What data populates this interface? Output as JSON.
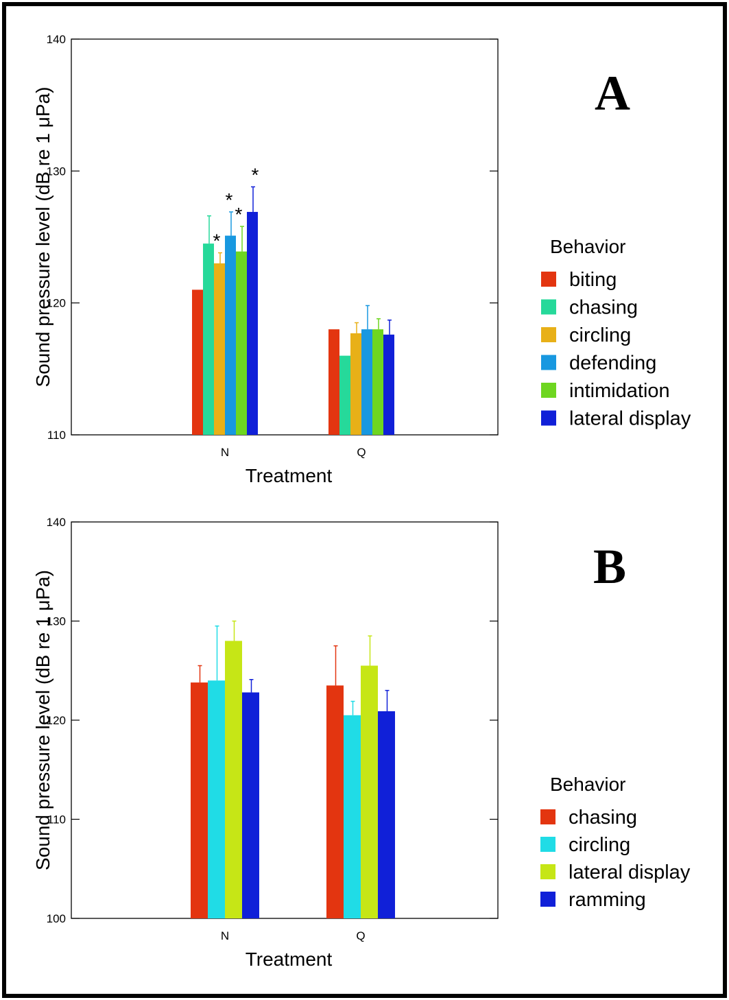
{
  "colors": {
    "biting": "#e33510",
    "chasing_a": "#26d99a",
    "circling_a": "#e8b018",
    "defending": "#1898e0",
    "intimidation": "#6ed620",
    "lateral_display": "#1020d8",
    "chasing_b": "#e33510",
    "circling_b": "#20dce6",
    "lateral_display_b": "#c6e616",
    "ramming": "#1020d8"
  },
  "chart_data": [
    {
      "type": "bar",
      "panel_label": "A",
      "xlabel": "Treatment",
      "ylabel": "Sound pressure level (dB re 1 μPa)",
      "ylim": [
        110,
        140
      ],
      "yticks": [
        "110",
        "120",
        "130",
        "140"
      ],
      "categories": [
        "N",
        "Q"
      ],
      "legend_title": "Behavior",
      "legend_position": "right",
      "series": [
        {
          "name": "biting",
          "values": [
            121.0,
            118.0
          ],
          "errors": [
            null,
            null
          ],
          "significant": [
            false,
            false
          ],
          "color_key": "biting"
        },
        {
          "name": "chasing",
          "values": [
            124.5,
            116.0
          ],
          "errors": [
            2.1,
            null
          ],
          "significant": [
            false,
            false
          ],
          "color_key": "chasing_a"
        },
        {
          "name": "circling",
          "values": [
            123.0,
            117.7
          ],
          "errors": [
            0.8,
            0.8
          ],
          "significant": [
            true,
            false
          ],
          "color_key": "circling_a"
        },
        {
          "name": "defending",
          "values": [
            125.1,
            118.0
          ],
          "errors": [
            1.8,
            1.8
          ],
          "significant": [
            true,
            false
          ],
          "color_key": "defending"
        },
        {
          "name": "intimidation",
          "values": [
            123.9,
            118.0
          ],
          "errors": [
            1.9,
            0.8
          ],
          "significant": [
            true,
            false
          ],
          "color_key": "intimidation"
        },
        {
          "name": "lateral display",
          "values": [
            126.9,
            117.6
          ],
          "errors": [
            1.9,
            1.1
          ],
          "significant": [
            true,
            false
          ],
          "color_key": "lateral_display"
        }
      ],
      "annotation_symbol": "*"
    },
    {
      "type": "bar",
      "panel_label": "B",
      "xlabel": "Treatment",
      "ylabel": "Sound pressure level (dB re 1 μPa)",
      "ylim": [
        100,
        140
      ],
      "yticks": [
        "100",
        "110",
        "120",
        "130",
        "140"
      ],
      "categories": [
        "N",
        "Q"
      ],
      "legend_title": "Behavior",
      "legend_position": "right",
      "series": [
        {
          "name": "chasing",
          "values": [
            123.8,
            123.5
          ],
          "errors": [
            1.7,
            4.0
          ],
          "color_key": "chasing_b"
        },
        {
          "name": "circling",
          "values": [
            124.0,
            120.5
          ],
          "errors": [
            5.5,
            1.4
          ],
          "color_key": "circling_b"
        },
        {
          "name": "lateral display",
          "values": [
            128.0,
            125.5
          ],
          "errors": [
            2.0,
            3.0
          ],
          "color_key": "lateral_display_b"
        },
        {
          "name": "ramming",
          "values": [
            122.8,
            120.9
          ],
          "errors": [
            1.3,
            2.1
          ],
          "color_key": "ramming"
        }
      ]
    }
  ]
}
